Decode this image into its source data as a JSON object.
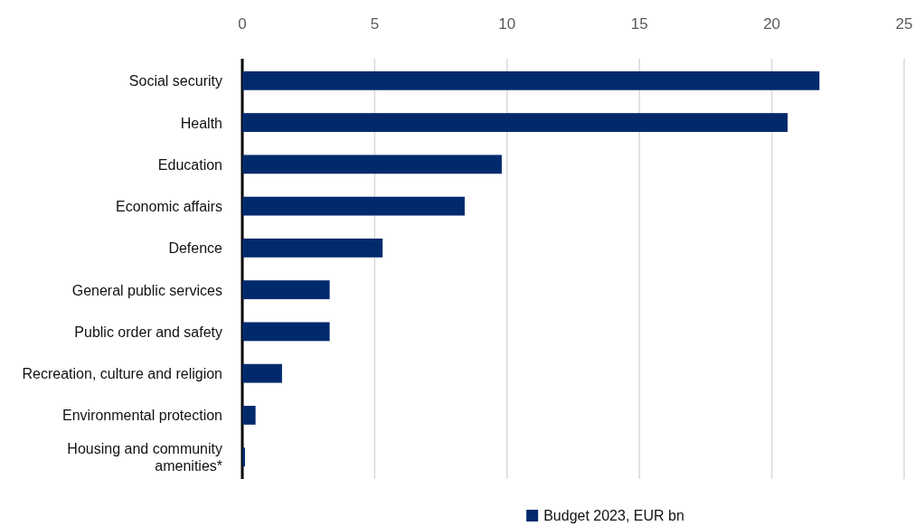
{
  "chart_data": {
    "type": "bar",
    "orientation": "horizontal",
    "categories": [
      "Social security",
      "Health",
      "Education",
      "Economic affairs",
      "Defence",
      "General public services",
      "Public order and safety",
      "Recreation, culture and religion",
      "Environmental protection",
      "Housing and community amenities*"
    ],
    "series": [
      {
        "name": "Budget 2023, EUR bn",
        "color": "#002a6c",
        "values": [
          21.8,
          20.6,
          9.8,
          8.4,
          5.3,
          3.3,
          3.3,
          1.5,
          0.5,
          0.1
        ]
      }
    ],
    "xlim": [
      0,
      25
    ],
    "xticks": [
      0,
      5,
      10,
      15,
      20,
      25
    ],
    "grid": "x",
    "legend": "bottom"
  }
}
